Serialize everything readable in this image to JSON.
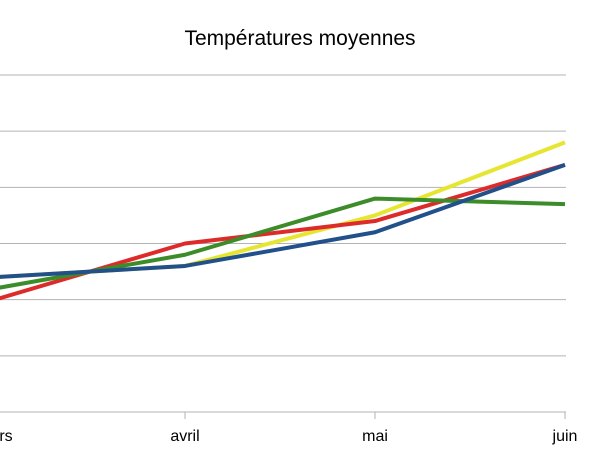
{
  "chart_data": {
    "type": "line",
    "title": "Températures moyennes",
    "xlabel": "",
    "ylabel": "",
    "categories": [
      "mars",
      "avril",
      "mai",
      "juin"
    ],
    "visible_category_labels": [
      "rs",
      "avril",
      "mai",
      "juin"
    ],
    "ylim": [
      0,
      6
    ],
    "grid": true,
    "series": [
      {
        "color": "#e6e632",
        "values": [
          2.4,
          2.6,
          3.5,
          4.8
        ]
      },
      {
        "color": "#dd2b2b",
        "values": [
          2.0,
          3.0,
          3.4,
          4.4
        ]
      },
      {
        "color": "#3d8c2a",
        "values": [
          2.2,
          2.8,
          3.8,
          3.7
        ]
      },
      {
        "color": "#22508a",
        "values": [
          2.4,
          2.6,
          3.2,
          4.4
        ]
      }
    ]
  }
}
